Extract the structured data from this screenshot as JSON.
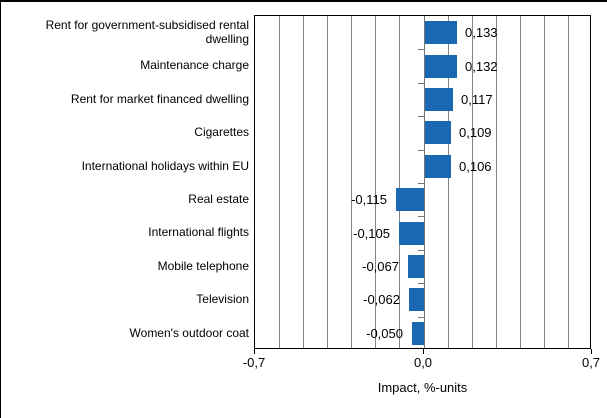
{
  "chart_data": {
    "type": "bar",
    "orientation": "horizontal",
    "title": "",
    "xlabel": "Impact, %-units",
    "xlim": [
      -0.7,
      0.7
    ],
    "gridline_interval": 0.1,
    "grid": true,
    "categories": [
      "Rent for government-subsidised rental dwelling",
      "Maintenance charge",
      "Rent for market financed dwelling",
      "Cigarettes",
      "International holidays within EU",
      "Real estate",
      "International flights",
      "Mobile telephone",
      "Television",
      "Women's outdoor coat"
    ],
    "values": [
      0.133,
      0.132,
      0.117,
      0.109,
      0.106,
      -0.115,
      -0.105,
      -0.067,
      -0.062,
      -0.05
    ],
    "value_labels": [
      "0,133",
      "0,132",
      "0,117",
      "0,109",
      "0,106",
      "-0,115",
      "-0,105",
      "-0,067",
      "-0,062",
      "-0,050"
    ],
    "x_ticks": [
      {
        "value": -0.7,
        "label": "-0,7"
      },
      {
        "value": 0.0,
        "label": "0,0"
      },
      {
        "value": 0.7,
        "label": "0,7"
      }
    ],
    "colors": {
      "bar": "#1a68b2",
      "gridline": "#848484",
      "zero_axis": "#757575",
      "plot_border": "#000000",
      "text": "#000000",
      "background": "#ffffff"
    }
  }
}
